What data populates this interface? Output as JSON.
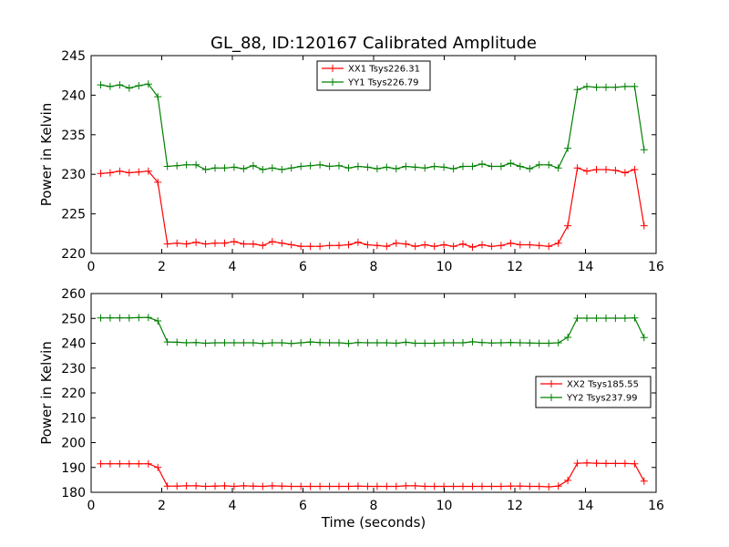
{
  "figure": {
    "title": "GL_88, ID:120167 Calibrated Amplitude",
    "xlabel": "Time (seconds)"
  },
  "chart_data": [
    {
      "type": "line",
      "title": "GL_88, ID:120167 Calibrated Amplitude",
      "xlabel": "",
      "ylabel": "Power in Kelvin",
      "xlim": [
        0,
        16
      ],
      "ylim": [
        220,
        245
      ],
      "xticks": [
        "0",
        "2",
        "4",
        "6",
        "8",
        "10",
        "12",
        "14",
        "16"
      ],
      "yticks": [
        "220",
        "225",
        "230",
        "235",
        "240",
        "245"
      ],
      "grid": false,
      "legend_position": "upper-center",
      "x": [
        0.27,
        0.54,
        0.81,
        1.08,
        1.35,
        1.62,
        1.89,
        2.16,
        2.43,
        2.7,
        2.97,
        3.24,
        3.51,
        3.78,
        4.05,
        4.32,
        4.59,
        4.86,
        5.13,
        5.4,
        5.67,
        5.94,
        6.21,
        6.48,
        6.75,
        7.02,
        7.29,
        7.56,
        7.83,
        8.1,
        8.37,
        8.64,
        8.91,
        9.18,
        9.45,
        9.72,
        9.99,
        10.26,
        10.53,
        10.8,
        11.07,
        11.34,
        11.61,
        11.88,
        12.15,
        12.42,
        12.69,
        12.96,
        13.23,
        13.5,
        13.77,
        14.04,
        14.31,
        14.58,
        14.85,
        15.12,
        15.39,
        15.66
      ],
      "series": [
        {
          "name": "XX1 Tsys226.31",
          "color": "#ff0000",
          "values": [
            230.1,
            230.2,
            230.4,
            230.2,
            230.3,
            230.4,
            229.0,
            221.2,
            221.3,
            221.2,
            221.4,
            221.2,
            221.3,
            221.3,
            221.5,
            221.2,
            221.2,
            221.0,
            221.5,
            221.3,
            221.1,
            220.9,
            220.9,
            220.9,
            221.0,
            221.0,
            221.1,
            221.4,
            221.1,
            221.0,
            220.9,
            221.3,
            221.2,
            220.9,
            221.1,
            220.9,
            221.1,
            220.9,
            221.2,
            220.8,
            221.1,
            220.9,
            221.0,
            221.3,
            221.1,
            221.1,
            221.0,
            220.9,
            221.3,
            223.5,
            230.8,
            230.4,
            230.6,
            230.6,
            230.5,
            230.2,
            230.6,
            223.5
          ]
        },
        {
          "name": "YY1 Tsys226.79",
          "color": "#008000",
          "values": [
            241.3,
            241.1,
            241.3,
            240.9,
            241.2,
            241.4,
            239.8,
            231.0,
            231.1,
            231.2,
            231.2,
            230.6,
            230.8,
            230.8,
            230.9,
            230.7,
            231.1,
            230.6,
            230.8,
            230.6,
            230.8,
            231.0,
            231.1,
            231.2,
            231.0,
            231.1,
            230.8,
            231.0,
            230.9,
            230.7,
            230.9,
            230.7,
            231.0,
            230.9,
            230.8,
            231.0,
            230.9,
            230.7,
            231.0,
            231.0,
            231.3,
            231.0,
            231.0,
            231.4,
            231.0,
            230.7,
            231.2,
            231.2,
            230.8,
            233.3,
            240.7,
            241.1,
            241.0,
            241.0,
            241.0,
            241.1,
            241.1,
            233.1
          ]
        }
      ]
    },
    {
      "type": "line",
      "title": "",
      "xlabel": "Time (seconds)",
      "ylabel": "Power in Kelvin",
      "xlim": [
        0,
        16
      ],
      "ylim": [
        180,
        260
      ],
      "xticks": [
        "0",
        "2",
        "4",
        "6",
        "8",
        "10",
        "12",
        "14",
        "16"
      ],
      "yticks": [
        "180",
        "190",
        "200",
        "210",
        "220",
        "230",
        "240",
        "250",
        "260"
      ],
      "grid": false,
      "legend_position": "center-right",
      "x": [
        0.27,
        0.54,
        0.81,
        1.08,
        1.35,
        1.62,
        1.89,
        2.16,
        2.43,
        2.7,
        2.97,
        3.24,
        3.51,
        3.78,
        4.05,
        4.32,
        4.59,
        4.86,
        5.13,
        5.4,
        5.67,
        5.94,
        6.21,
        6.48,
        6.75,
        7.02,
        7.29,
        7.56,
        7.83,
        8.1,
        8.37,
        8.64,
        8.91,
        9.18,
        9.45,
        9.72,
        9.99,
        10.26,
        10.53,
        10.8,
        11.07,
        11.34,
        11.61,
        11.88,
        12.15,
        12.42,
        12.69,
        12.96,
        13.23,
        13.5,
        13.77,
        14.04,
        14.31,
        14.58,
        14.85,
        15.12,
        15.39,
        15.66
      ],
      "series": [
        {
          "name": "XX2 Tsys185.55",
          "color": "#ff0000",
          "values": [
            191.5,
            191.5,
            191.5,
            191.5,
            191.5,
            191.5,
            190.0,
            182.5,
            182.5,
            182.6,
            182.6,
            182.4,
            182.5,
            182.6,
            182.4,
            182.6,
            182.5,
            182.4,
            182.6,
            182.5,
            182.4,
            182.4,
            182.4,
            182.4,
            182.4,
            182.4,
            182.4,
            182.5,
            182.4,
            182.4,
            182.4,
            182.4,
            182.6,
            182.6,
            182.4,
            182.4,
            182.4,
            182.4,
            182.4,
            182.4,
            182.4,
            182.4,
            182.4,
            182.5,
            182.5,
            182.4,
            182.4,
            182.2,
            182.5,
            184.8,
            191.7,
            191.8,
            191.7,
            191.6,
            191.6,
            191.6,
            191.5,
            184.5
          ]
        },
        {
          "name": "YY2 Tsys237.99",
          "color": "#008000",
          "values": [
            250.2,
            250.2,
            250.2,
            250.2,
            250.3,
            250.4,
            249.0,
            240.5,
            240.4,
            240.2,
            240.3,
            240.0,
            240.2,
            240.2,
            240.2,
            240.2,
            240.2,
            239.9,
            240.2,
            240.2,
            239.9,
            240.2,
            240.5,
            240.3,
            240.2,
            240.2,
            239.9,
            240.3,
            240.2,
            240.2,
            240.2,
            240.0,
            240.4,
            240.0,
            240.0,
            240.0,
            240.2,
            240.2,
            240.2,
            240.6,
            240.3,
            240.1,
            240.2,
            240.3,
            240.2,
            240.1,
            240.0,
            240.0,
            240.2,
            242.4,
            250.1,
            250.1,
            250.1,
            250.1,
            250.1,
            250.1,
            250.2,
            242.3
          ]
        }
      ]
    }
  ]
}
